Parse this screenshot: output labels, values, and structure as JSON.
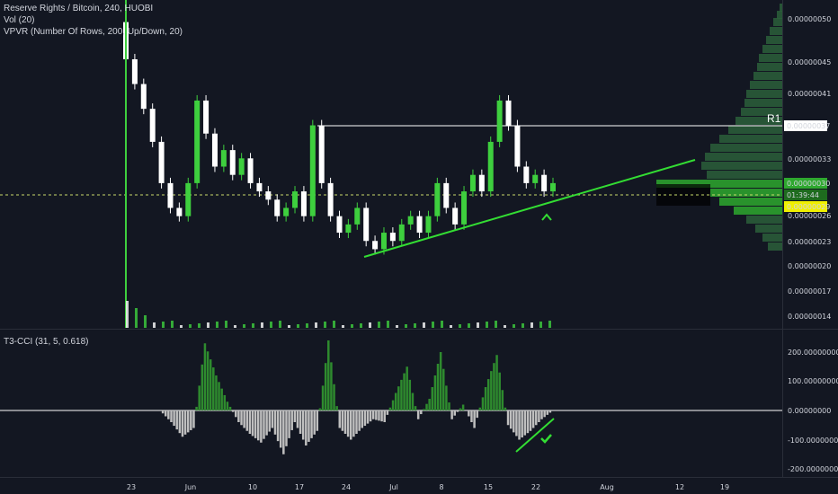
{
  "header": {
    "symbol_line": "Reserve Rights / Bitcoin, 240, HUOBI",
    "vol_line": "Vol (20)",
    "vpvr_line": "VPVR (Number Of Rows, 200, Up/Down, 20)"
  },
  "indicator": {
    "label": "T3-CCI (31, 5, 0.618)"
  },
  "price_axis": {
    "labels": [
      "0.00000050",
      "0.00000045",
      "0.00000041",
      "0.00000033",
      "0.00000026",
      "0.00000023",
      "0.00000020",
      "0.00000017",
      "0.00000014"
    ],
    "badges": {
      "r1_price": "0.00000037",
      "current_price": "0.00000030",
      "countdown": "01:39:44",
      "low_price": "0.00000029"
    },
    "r1_label": "R1"
  },
  "cci_axis": {
    "labels": [
      "200.00000000",
      "100.00000000",
      "0.00000000",
      "-100.00000000",
      "-200.00000000"
    ]
  },
  "time_axis": {
    "labels": [
      "23",
      "Jun",
      "10",
      "17",
      "24",
      "Jul",
      "8",
      "15",
      "22",
      "Aug",
      "12",
      "19"
    ]
  },
  "colors": {
    "background": "#131722",
    "bull": "#3ecf3e",
    "bear": "#ffffff",
    "trendline": "#33dd33",
    "cci_pos": "#2e8b2e",
    "cci_neg": "#bfbfbf",
    "badge_green": "#2ea82e",
    "badge_yellow": "#f0f000",
    "vpvr": "#2b5f3a"
  },
  "chart_data": {
    "type": "candlestick",
    "price_close": [
      4.5e-07,
      4.2e-07,
      3.9e-07,
      3.5e-07,
      3e-07,
      2.7e-07,
      2.6e-07,
      3e-07,
      4e-07,
      3.6e-07,
      3.2e-07,
      3.4e-07,
      3.1e-07,
      3.3e-07,
      3e-07,
      2.9e-07,
      2.8e-07,
      2.6e-07,
      2.7e-07,
      2.9e-07,
      2.6e-07,
      3.7e-07,
      3e-07,
      2.6e-07,
      2.4e-07,
      2.5e-07,
      2.7e-07,
      2.3e-07,
      2.2e-07,
      2.4e-07,
      2.3e-07,
      2.5e-07,
      2.6e-07,
      2.4e-07,
      2.6e-07,
      3e-07,
      2.7e-07,
      2.5e-07,
      2.9e-07,
      3.1e-07,
      2.9e-07,
      3.5e-07,
      4e-07,
      3.7e-07,
      3.2e-07,
      3e-07,
      3.1e-07,
      2.9e-07,
      3e-07
    ],
    "trendlines": "rising support from late June low through current price",
    "resistance_R1": 3.7e-07,
    "cci_values": [
      0,
      -40,
      -90,
      -60,
      230,
      120,
      30,
      -40,
      -80,
      -110,
      -60,
      -150,
      -40,
      -120,
      -70,
      240,
      -60,
      -100,
      -60,
      -30,
      -40,
      60,
      150,
      -30,
      40,
      200,
      -30,
      20,
      -60,
      80,
      190,
      -50,
      -100,
      -70,
      -30,
      0
    ]
  }
}
